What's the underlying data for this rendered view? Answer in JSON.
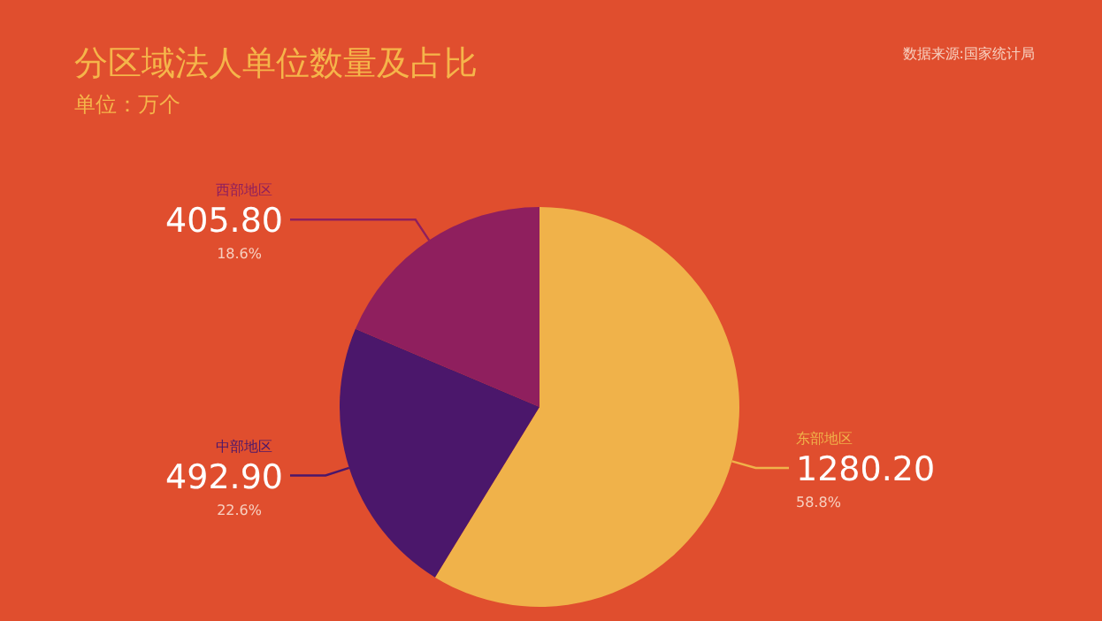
{
  "chart_data": {
    "type": "pie",
    "title": "分区域法人单位数量及占比",
    "subtitle": "单位：万个",
    "categories": [
      "东部地区",
      "中部地区",
      "西部地区"
    ],
    "values": [
      1280.2,
      492.9,
      405.8
    ],
    "value_labels": [
      "1280.20",
      "492.90",
      "405.80"
    ],
    "colors": [
      "#f0b24a",
      "#4b176b",
      "#8f1f5e"
    ],
    "annotations": [
      "数据来源:国家统计局",
      {
        "text": "58.8%",
        "x": "东部地区"
      },
      {
        "text": "22.6%",
        "x": "中部地区"
      },
      {
        "text": "18.6%",
        "x": "西部地区"
      }
    ]
  }
}
